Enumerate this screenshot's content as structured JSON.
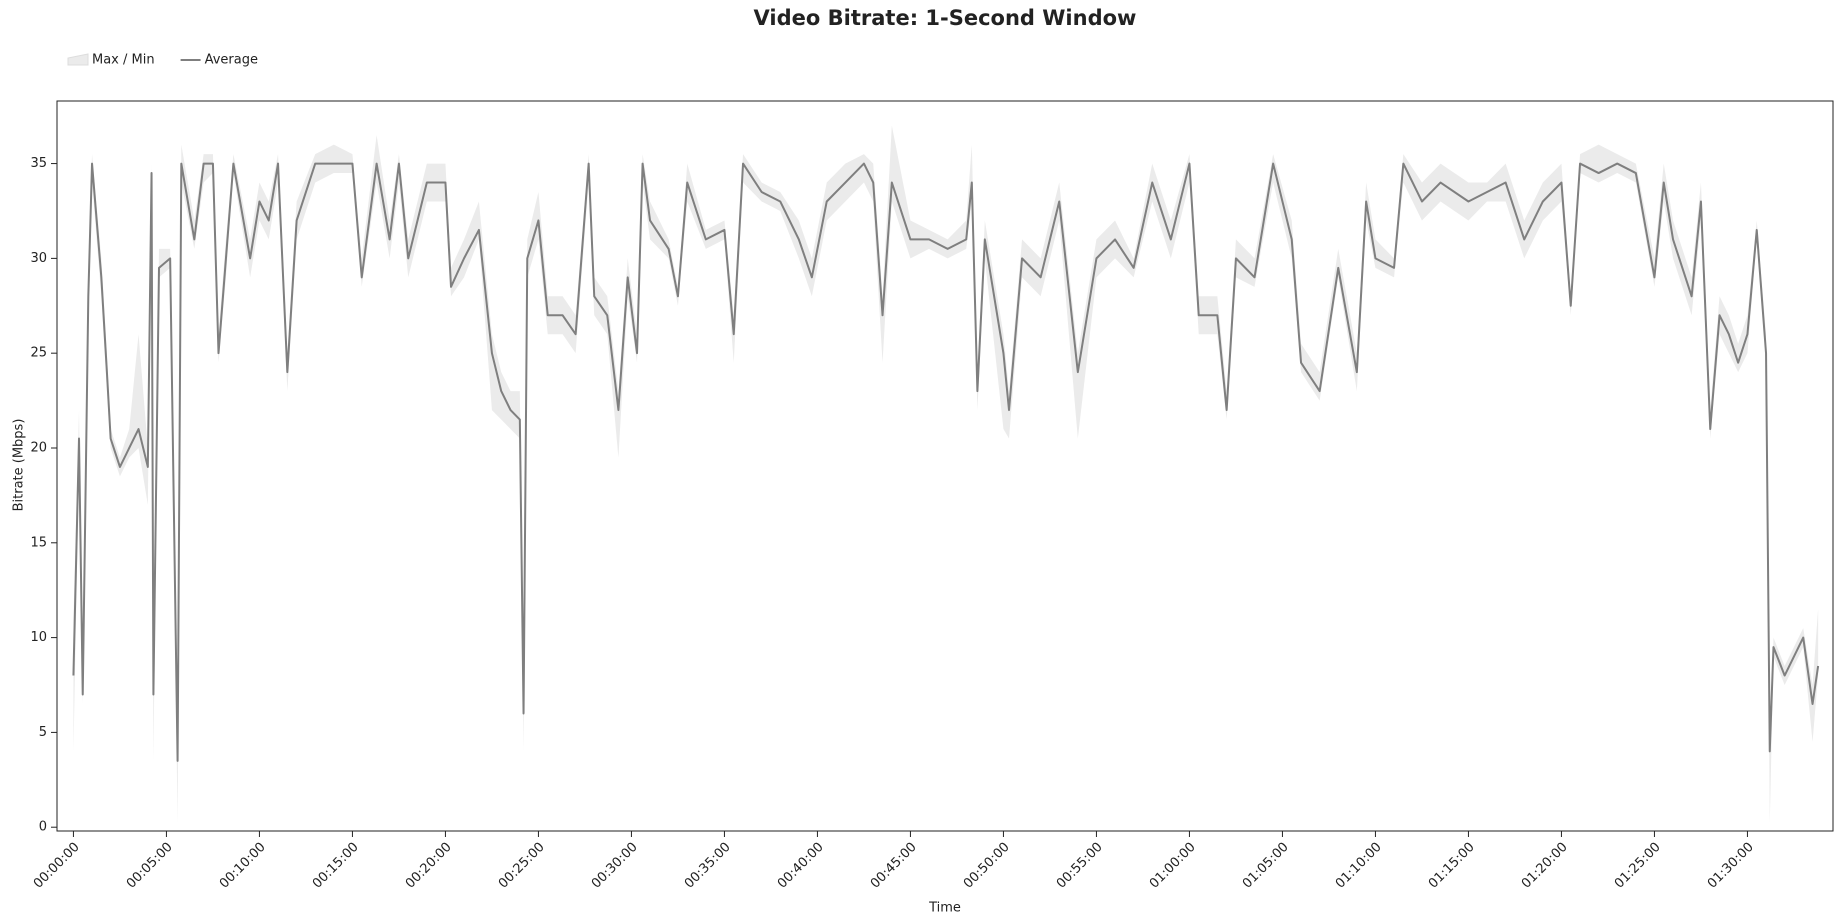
{
  "chart_data": {
    "type": "line",
    "title": "Video Bitrate: 1-Second Window",
    "x_label": "Time",
    "y_label": "Bitrate (Mbps)",
    "x": [
      0,
      18,
      30,
      48,
      60,
      90,
      108,
      120,
      150,
      180,
      210,
      240,
      252,
      258,
      276,
      312,
      336,
      348,
      390,
      420,
      450,
      468,
      492,
      516,
      570,
      600,
      630,
      660,
      690,
      720,
      780,
      840,
      900,
      930,
      978,
      1020,
      1050,
      1080,
      1140,
      1200,
      1218,
      1260,
      1308,
      1350,
      1380,
      1410,
      1440,
      1452,
      1464,
      1500,
      1530,
      1578,
      1620,
      1662,
      1680,
      1722,
      1758,
      1788,
      1818,
      1836,
      1860,
      1920,
      1950,
      1980,
      2040,
      2100,
      2130,
      2160,
      2220,
      2280,
      2340,
      2382,
      2430,
      2490,
      2550,
      2580,
      2610,
      2640,
      2700,
      2760,
      2820,
      2880,
      2898,
      2916,
      2940,
      3000,
      3018,
      3060,
      3120,
      3180,
      3240,
      3300,
      3360,
      3420,
      3480,
      3540,
      3600,
      3630,
      3690,
      3720,
      3750,
      3810,
      3870,
      3930,
      3960,
      4020,
      4080,
      4140,
      4170,
      4200,
      4260,
      4290,
      4350,
      4410,
      4500,
      4560,
      4620,
      4680,
      4740,
      4800,
      4830,
      4860,
      4920,
      4980,
      5040,
      5100,
      5130,
      5160,
      5220,
      5250,
      5280,
      5310,
      5340,
      5370,
      5400,
      5430,
      5460,
      5472,
      5484,
      5520,
      5580,
      5610,
      5628
    ],
    "series": [
      {
        "name": "Max / Min",
        "color": "#ebebeb",
        "max": [
          11,
          22,
          8,
          29,
          35.5,
          30,
          25,
          21,
          19.5,
          21,
          26,
          20,
          35,
          8,
          30.5,
          30.5,
          4,
          36,
          32,
          35.5,
          35.5,
          26,
          31,
          35.5,
          31,
          34,
          33,
          35.5,
          25,
          33,
          35.5,
          36,
          35.5,
          30,
          36.5,
          32,
          35.5,
          31,
          35,
          35,
          29.5,
          31,
          33,
          26,
          24,
          23,
          23,
          7,
          31,
          33.5,
          28,
          28,
          27,
          35.5,
          29,
          28,
          23,
          30,
          26,
          35.5,
          33,
          31,
          28.5,
          35,
          31.5,
          32,
          27,
          35.5,
          34,
          33.5,
          32,
          30,
          34,
          35,
          35.5,
          35,
          28,
          37,
          32,
          31.5,
          31,
          32,
          36,
          24,
          32,
          26,
          23,
          31,
          30,
          34,
          25,
          31,
          32,
          30,
          35,
          32,
          35.5,
          28,
          28,
          23,
          31,
          30,
          35.5,
          32,
          25.5,
          24,
          30.5,
          25,
          34,
          31,
          30,
          35.5,
          34,
          35,
          34,
          34,
          35,
          32,
          34,
          35,
          28,
          35.5,
          36,
          35.5,
          35,
          30,
          35,
          32,
          29,
          34,
          22,
          28,
          27,
          25.5,
          27,
          32,
          26,
          5,
          10,
          8.5,
          10.5,
          7.5,
          11.5
        ],
        "min": [
          4,
          19,
          6.5,
          27,
          34,
          28,
          23,
          20,
          18.5,
          19.5,
          20,
          17,
          33,
          3.5,
          29,
          29.5,
          0.2,
          34,
          30.5,
          34,
          34.5,
          24.5,
          29,
          34.5,
          29,
          32,
          31,
          34,
          23,
          31,
          34,
          34.5,
          34.5,
          28.5,
          34,
          30,
          34,
          29,
          33,
          33,
          28,
          29,
          31,
          22,
          21.5,
          21,
          20.5,
          4,
          29,
          31,
          26,
          26,
          25,
          34,
          27,
          26,
          19.5,
          28,
          24.5,
          34,
          31,
          30,
          27.5,
          33,
          30.5,
          31,
          24.5,
          34,
          33,
          32.5,
          30,
          28,
          32,
          33,
          34,
          33,
          24.5,
          33,
          30,
          30.5,
          30,
          30.5,
          33,
          22,
          30,
          21,
          20.5,
          29,
          28,
          32,
          20.5,
          29,
          30,
          29,
          33,
          30,
          34,
          26,
          26,
          21.5,
          29,
          28.5,
          34,
          30,
          24,
          22.5,
          29,
          23,
          32,
          29.5,
          29,
          34,
          32,
          33,
          32,
          33,
          33,
          30,
          32,
          33,
          27,
          34.5,
          34,
          34.5,
          34,
          28.5,
          33,
          30,
          27,
          32,
          20.5,
          26,
          25,
          24,
          25,
          31,
          24.5,
          0.2,
          9,
          7.5,
          9.5,
          4.5,
          8
        ]
      },
      {
        "name": "Average",
        "color": "#7f7f7f",
        "values": [
          8,
          20.5,
          7,
          28,
          35,
          29,
          24,
          20.5,
          19,
          20,
          21,
          19,
          34.5,
          7,
          29.5,
          30,
          3.5,
          35,
          31,
          35,
          35,
          25,
          30,
          35,
          30,
          33,
          32,
          35,
          24,
          32,
          35,
          35,
          35,
          29,
          35,
          31,
          35,
          30,
          34,
          34,
          28.5,
          30,
          31.5,
          25,
          23,
          22,
          21.5,
          6,
          30,
          32,
          27,
          27,
          26,
          35,
          28,
          27,
          22,
          29,
          25,
          35,
          32,
          30.5,
          28,
          34,
          31,
          31.5,
          26,
          35,
          33.5,
          33,
          31,
          29,
          33,
          34,
          35,
          34,
          27,
          34,
          31,
          31,
          30.5,
          31,
          34,
          23,
          31,
          25,
          22,
          30,
          29,
          33,
          24,
          30,
          31,
          29.5,
          34,
          31,
          35,
          27,
          27,
          22,
          30,
          29,
          35,
          31,
          24.5,
          23,
          29.5,
          24,
          33,
          30,
          29.5,
          35,
          33,
          34,
          33,
          33.5,
          34,
          31,
          33,
          34,
          27.5,
          35,
          34.5,
          35,
          34.5,
          29,
          34,
          31,
          28,
          33,
          21,
          27,
          26,
          24.5,
          26,
          31.5,
          25,
          4,
          9.5,
          8,
          10,
          6.5,
          8.5
        ]
      }
    ],
    "xlim": [
      -53,
      5676
    ],
    "ylim": [
      -0.2,
      38.3
    ],
    "xticks": [
      {
        "value": 0,
        "label": "00:00:00"
      },
      {
        "value": 300,
        "label": "00:05:00"
      },
      {
        "value": 600,
        "label": "00:10:00"
      },
      {
        "value": 900,
        "label": "00:15:00"
      },
      {
        "value": 1200,
        "label": "00:20:00"
      },
      {
        "value": 1500,
        "label": "00:25:00"
      },
      {
        "value": 1800,
        "label": "00:30:00"
      },
      {
        "value": 2100,
        "label": "00:35:00"
      },
      {
        "value": 2400,
        "label": "00:40:00"
      },
      {
        "value": 2700,
        "label": "00:45:00"
      },
      {
        "value": 3000,
        "label": "00:50:00"
      },
      {
        "value": 3300,
        "label": "00:55:00"
      },
      {
        "value": 3600,
        "label": "01:00:00"
      },
      {
        "value": 3900,
        "label": "01:05:00"
      },
      {
        "value": 4200,
        "label": "01:10:00"
      },
      {
        "value": 4500,
        "label": "01:15:00"
      },
      {
        "value": 4800,
        "label": "01:20:00"
      },
      {
        "value": 5100,
        "label": "01:25:00"
      },
      {
        "value": 5400,
        "label": "01:30:00"
      }
    ],
    "yticks": [
      0,
      5,
      10,
      15,
      20,
      25,
      30,
      35
    ],
    "legend": "top-left"
  }
}
